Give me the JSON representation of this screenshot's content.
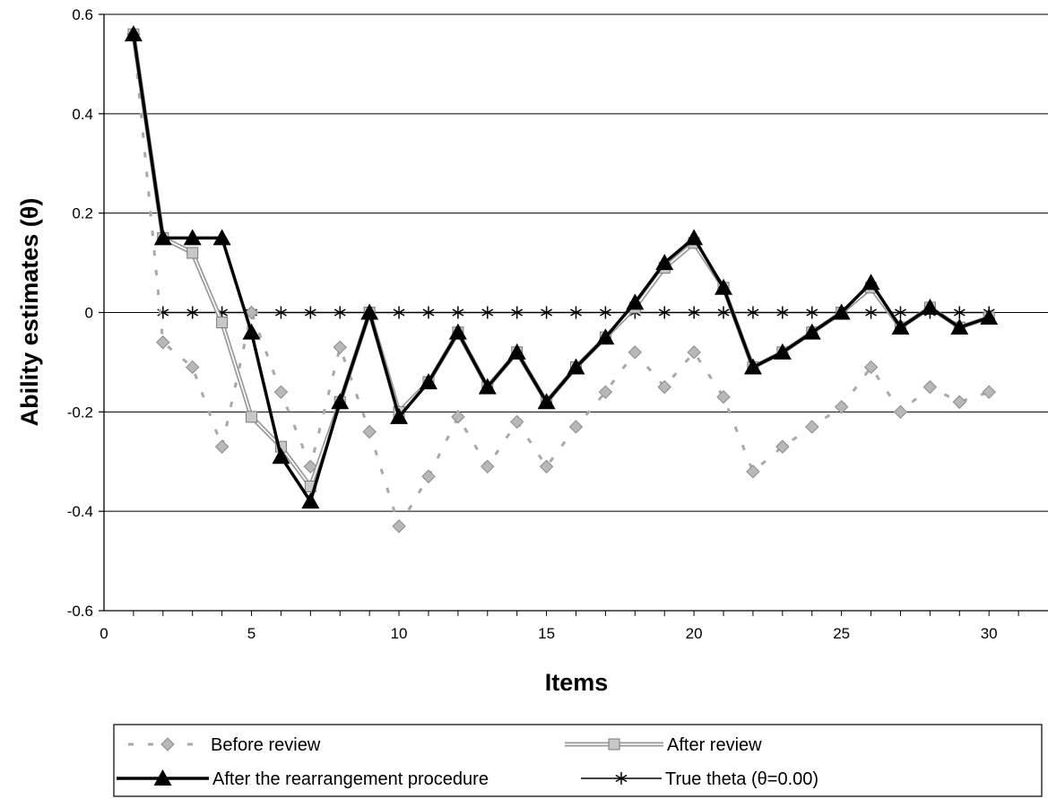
{
  "chart_data": {
    "type": "line",
    "title": "",
    "xlabel": "Items",
    "ylabel": "Ability estimates (θ)",
    "xlim": [
      0,
      32
    ],
    "ylim": [
      -0.6,
      0.6
    ],
    "xticks": [
      0,
      5,
      10,
      15,
      20,
      25,
      30
    ],
    "yticks": [
      0.6,
      0.4,
      0.2,
      0,
      -0.2,
      -0.4,
      -0.6
    ],
    "ytick_labels": [
      "0.6",
      "0.4",
      "0.2",
      "0",
      "-0.2",
      "-0.4",
      "-0.6"
    ],
    "grid": "horizontal",
    "legend_position": "bottom",
    "x": [
      1,
      2,
      3,
      4,
      5,
      6,
      7,
      8,
      9,
      10,
      11,
      12,
      13,
      14,
      15,
      16,
      17,
      18,
      19,
      20,
      21,
      22,
      23,
      24,
      25,
      26,
      27,
      28,
      29,
      30
    ],
    "series": [
      {
        "name": "Before review",
        "style": "dashed-diamond",
        "color": "#a8a8a8",
        "values": [
          0.56,
          -0.06,
          -0.11,
          -0.27,
          0.0,
          -0.16,
          -0.31,
          -0.07,
          -0.24,
          -0.43,
          -0.33,
          -0.21,
          -0.31,
          -0.22,
          -0.31,
          -0.23,
          -0.16,
          -0.08,
          -0.15,
          -0.08,
          -0.17,
          -0.32,
          -0.27,
          -0.23,
          -0.19,
          -0.11,
          -0.2,
          -0.15,
          -0.18,
          -0.16
        ]
      },
      {
        "name": "After review",
        "style": "double-line-square",
        "color": "#a0a0a0",
        "values": [
          0.56,
          0.15,
          0.12,
          -0.02,
          -0.21,
          -0.27,
          -0.35,
          -0.18,
          0.0,
          -0.2,
          -0.14,
          -0.04,
          -0.15,
          -0.08,
          -0.18,
          -0.11,
          -0.05,
          0.01,
          0.09,
          0.14,
          0.05,
          -0.11,
          -0.08,
          -0.04,
          0.0,
          0.05,
          -0.03,
          0.01,
          -0.03,
          -0.01
        ]
      },
      {
        "name": "After the rearrangement procedure",
        "style": "thick-triangle",
        "color": "#000000",
        "values": [
          0.56,
          0.15,
          0.15,
          0.15,
          -0.04,
          -0.29,
          -0.38,
          -0.18,
          0.0,
          -0.21,
          -0.14,
          -0.04,
          -0.15,
          -0.08,
          -0.18,
          -0.11,
          -0.05,
          0.02,
          0.1,
          0.15,
          0.05,
          -0.11,
          -0.08,
          -0.04,
          0.0,
          0.06,
          -0.03,
          0.01,
          -0.03,
          -0.01
        ]
      },
      {
        "name": "True theta (θ=0.00)",
        "style": "thin-star",
        "color": "#000000",
        "values": [
          null,
          0,
          0,
          0,
          0,
          0,
          0,
          0,
          0,
          0,
          0,
          0,
          0,
          0,
          0,
          0,
          0,
          0,
          0,
          0,
          0,
          0,
          0,
          0,
          0,
          0,
          0,
          0,
          0,
          0
        ]
      }
    ]
  }
}
